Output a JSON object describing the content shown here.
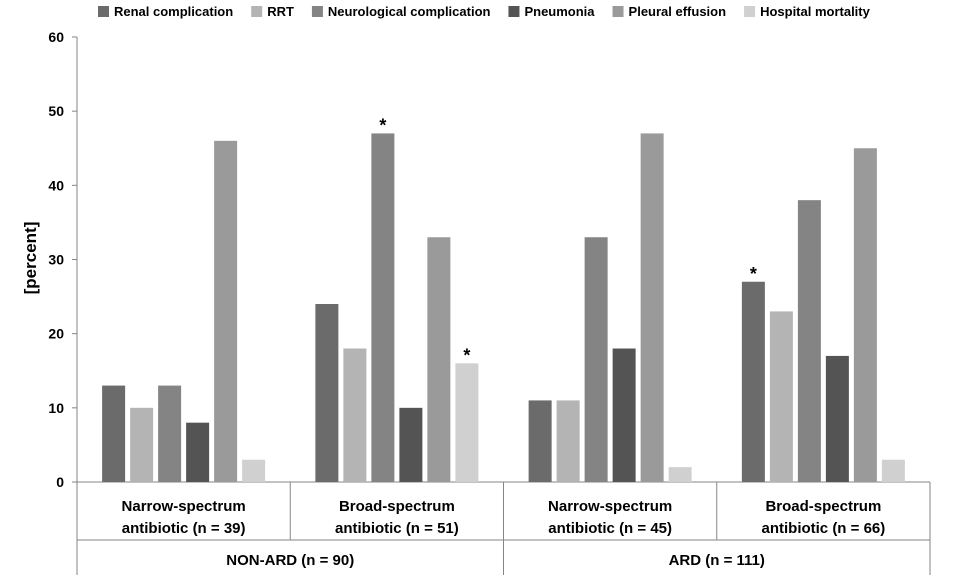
{
  "chart_data": {
    "type": "bar",
    "title": "",
    "xlabel": "",
    "ylabel": "[percent]",
    "ylim": [
      0,
      60
    ],
    "yticks": [
      0,
      10,
      20,
      30,
      40,
      50,
      60
    ],
    "grid": false,
    "legend_position": "top",
    "categories": [
      "Narrow-spectrum antibiotic (n = 39)",
      "Broad-spectrum antibiotic (n = 51)",
      "Narrow-spectrum antibiotic (n = 45)",
      "Broad-spectrum antibiotic (n = 66)"
    ],
    "category_lines": [
      [
        "Narrow-spectrum",
        "antibiotic (n = 39)"
      ],
      [
        "Broad-spectrum",
        "antibiotic (n = 51)"
      ],
      [
        "Narrow-spectrum",
        "antibiotic (n = 45)"
      ],
      [
        "Broad-spectrum",
        "antibiotic (n = 66)"
      ]
    ],
    "groups": [
      {
        "label": "NON-ARD (n = 90)",
        "categories": [
          0,
          1
        ]
      },
      {
        "label": "ARD (n = 111)",
        "categories": [
          2,
          3
        ]
      }
    ],
    "series": [
      {
        "name": "Renal complication",
        "color": "#6b6b6b",
        "values": [
          13,
          24,
          11,
          27
        ]
      },
      {
        "name": "RRT",
        "color": "#b4b4b4",
        "values": [
          10,
          18,
          11,
          23
        ]
      },
      {
        "name": "Neurological complication",
        "color": "#848484",
        "values": [
          13,
          47,
          33,
          38
        ]
      },
      {
        "name": "Pneumonia",
        "color": "#545454",
        "values": [
          8,
          10,
          18,
          17
        ]
      },
      {
        "name": "Pleural effusion",
        "color": "#9a9a9a",
        "values": [
          46,
          33,
          47,
          45
        ]
      },
      {
        "name": "Hospital mortality",
        "color": "#d0d0d0",
        "values": [
          3,
          16,
          2,
          3
        ]
      }
    ],
    "annotations": [
      {
        "text": "*",
        "series": 2,
        "category": 1
      },
      {
        "text": "*",
        "series": 5,
        "category": 1
      },
      {
        "text": "*",
        "series": 0,
        "category": 3
      }
    ]
  }
}
